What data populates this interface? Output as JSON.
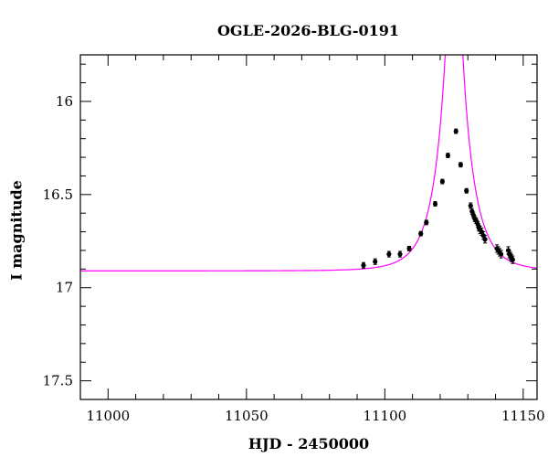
{
  "chart_data": {
    "type": "scatter",
    "title": "OGLE-2026-BLG-0191",
    "xlabel": "HJD - 2450000",
    "ylabel": "I magnitude",
    "xlim": [
      10990,
      11155
    ],
    "ylim": [
      17.6,
      15.75
    ],
    "y_inverted": true,
    "xticks": [
      11000,
      11050,
      11100,
      11150
    ],
    "xtick_labels": [
      "11000",
      "11050",
      "11100",
      "11150"
    ],
    "yticks": [
      16,
      16.5,
      17,
      17.5
    ],
    "ytick_labels": [
      "16",
      "16.5",
      "17",
      "17.5"
    ],
    "grid": false,
    "legend": "none",
    "colors": {
      "model": "#ff00ff",
      "points": "#000000"
    },
    "model": {
      "type": "point-lens",
      "baseline_mag": 16.91,
      "t0": 11125,
      "tE": 9.5,
      "u0": 0.13
    },
    "series": [
      {
        "points": [
          {
            "x": 11092.3,
            "y": 16.88,
            "err": 0.015
          },
          {
            "x": 11096.5,
            "y": 16.86,
            "err": 0.015
          },
          {
            "x": 11101.5,
            "y": 16.82,
            "err": 0.015
          },
          {
            "x": 11105.5,
            "y": 16.82,
            "err": 0.015
          },
          {
            "x": 11108.8,
            "y": 16.79,
            "err": 0.012
          },
          {
            "x": 11113.0,
            "y": 16.71,
            "err": 0.012
          },
          {
            "x": 11115.0,
            "y": 16.65,
            "err": 0.012
          },
          {
            "x": 11118.2,
            "y": 16.55,
            "err": 0.012
          },
          {
            "x": 11120.8,
            "y": 16.43,
            "err": 0.012
          },
          {
            "x": 11122.8,
            "y": 16.29,
            "err": 0.012
          },
          {
            "x": 11125.7,
            "y": 16.16,
            "err": 0.012
          },
          {
            "x": 11127.4,
            "y": 16.34,
            "err": 0.012
          },
          {
            "x": 11129.5,
            "y": 16.48,
            "err": 0.012
          },
          {
            "x": 11131.0,
            "y": 16.56,
            "err": 0.015
          },
          {
            "x": 11131.5,
            "y": 16.59,
            "err": 0.015
          },
          {
            "x": 11132.0,
            "y": 16.61,
            "err": 0.015
          },
          {
            "x": 11132.5,
            "y": 16.63,
            "err": 0.015
          },
          {
            "x": 11133.0,
            "y": 16.64,
            "err": 0.015
          },
          {
            "x": 11133.6,
            "y": 16.66,
            "err": 0.015
          },
          {
            "x": 11134.0,
            "y": 16.68,
            "err": 0.015
          },
          {
            "x": 11134.4,
            "y": 16.69,
            "err": 0.02
          },
          {
            "x": 11135.0,
            "y": 16.7,
            "err": 0.02
          },
          {
            "x": 11135.6,
            "y": 16.72,
            "err": 0.02
          },
          {
            "x": 11136.2,
            "y": 16.74,
            "err": 0.02
          },
          {
            "x": 11140.5,
            "y": 16.79,
            "err": 0.02
          },
          {
            "x": 11141.0,
            "y": 16.8,
            "err": 0.02
          },
          {
            "x": 11141.5,
            "y": 16.81,
            "err": 0.02
          },
          {
            "x": 11142.0,
            "y": 16.82,
            "err": 0.02
          },
          {
            "x": 11144.6,
            "y": 16.8,
            "err": 0.02
          },
          {
            "x": 11145.0,
            "y": 16.82,
            "err": 0.02
          },
          {
            "x": 11145.4,
            "y": 16.83,
            "err": 0.02
          },
          {
            "x": 11145.8,
            "y": 16.84,
            "err": 0.02
          },
          {
            "x": 11146.2,
            "y": 16.85,
            "err": 0.02
          }
        ]
      }
    ]
  }
}
